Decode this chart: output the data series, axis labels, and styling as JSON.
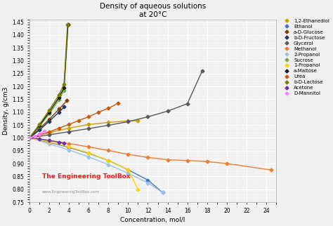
{
  "title_line1": "Density of aqueous solutions",
  "title_line2": "at 20°C",
  "xlabel": "Concentration, mol/l",
  "ylabel": "Density, g/cm3",
  "xlim": [
    0,
    25
  ],
  "ylim": [
    0.75,
    1.46
  ],
  "xticks": [
    0,
    2,
    4,
    6,
    8,
    10,
    12,
    14,
    16,
    18,
    20,
    22,
    24
  ],
  "yticks": [
    0.75,
    0.8,
    0.85,
    0.9,
    0.95,
    1.0,
    1.05,
    1.1,
    1.15,
    1.2,
    1.25,
    1.3,
    1.35,
    1.4,
    1.45
  ],
  "watermark_line1": "The Engineering ToolBox",
  "watermark_line2": "www.EngineeringToolBox.com",
  "bg_color": "#f0f0f0",
  "series": [
    {
      "label": "1,2-Ethanediol",
      "color": "#c8a000",
      "x": [
        0,
        2,
        4,
        6,
        8,
        10,
        11
      ],
      "y": [
        1.0,
        1.02,
        1.038,
        1.052,
        1.06,
        1.066,
        1.067
      ]
    },
    {
      "label": "Ethanol",
      "color": "#4472c4",
      "x": [
        0,
        2,
        4,
        6,
        8,
        10,
        12,
        13.5
      ],
      "y": [
        1.0,
        0.983,
        0.963,
        0.94,
        0.912,
        0.876,
        0.836,
        0.787
      ]
    },
    {
      "label": "a-D-Glucose",
      "color": "#7b3f00",
      "x": [
        0,
        1,
        2,
        3,
        3.8
      ],
      "y": [
        1.0,
        1.035,
        1.072,
        1.112,
        1.145
      ]
    },
    {
      "label": "b-D-Fructose",
      "color": "#1f3864",
      "x": [
        0,
        1,
        2,
        3,
        3.5
      ],
      "y": [
        1.0,
        1.03,
        1.065,
        1.1,
        1.12
      ]
    },
    {
      "label": "Glycerol",
      "color": "#595959",
      "x": [
        0,
        2,
        4,
        6,
        8,
        10,
        12,
        14,
        16,
        17.5
      ],
      "y": [
        1.0,
        1.012,
        1.024,
        1.036,
        1.049,
        1.063,
        1.082,
        1.104,
        1.133,
        1.26
      ]
    },
    {
      "label": "Methanol",
      "color": "#ed7d31",
      "x": [
        0,
        2,
        4,
        6,
        8,
        10,
        12,
        14,
        16,
        18,
        20,
        24.5
      ],
      "y": [
        1.0,
        0.99,
        0.978,
        0.965,
        0.951,
        0.936,
        0.924,
        0.915,
        0.912,
        0.908,
        0.9,
        0.875
      ]
    },
    {
      "label": "2-Propanol",
      "color": "#9dc3e6",
      "x": [
        0,
        2,
        4,
        6,
        8,
        10,
        12,
        13.5
      ],
      "y": [
        1.0,
        0.977,
        0.953,
        0.926,
        0.896,
        0.862,
        0.825,
        0.787
      ]
    },
    {
      "label": "Sucrose",
      "color": "#70ad47",
      "x": [
        0,
        1,
        2,
        3,
        3.5,
        3.9
      ],
      "y": [
        1.0,
        1.045,
        1.093,
        1.148,
        1.185,
        1.44
      ]
    },
    {
      "label": "1-Propanol",
      "color": "#ffd700",
      "x": [
        0,
        2,
        4,
        6,
        8,
        10,
        11
      ],
      "y": [
        1.0,
        0.985,
        0.965,
        0.942,
        0.912,
        0.876,
        0.8
      ]
    },
    {
      "label": "a-Maltose",
      "color": "#1a1a1a",
      "x": [
        0,
        1,
        2,
        3,
        3.5,
        3.9
      ],
      "y": [
        1.0,
        1.048,
        1.1,
        1.158,
        1.195,
        1.44
      ]
    },
    {
      "label": "Urea",
      "color": "#c55a11",
      "x": [
        0,
        1,
        2,
        3,
        4,
        5,
        6,
        7,
        8,
        9
      ],
      "y": [
        1.0,
        1.012,
        1.023,
        1.038,
        1.052,
        1.068,
        1.082,
        1.1,
        1.115,
        1.135
      ]
    },
    {
      "label": "b-D-Lactose",
      "color": "#7f7f00",
      "x": [
        0,
        1,
        2,
        3,
        3.5,
        3.85
      ],
      "y": [
        1.0,
        1.052,
        1.108,
        1.168,
        1.21,
        1.44
      ]
    },
    {
      "label": "Acetone",
      "color": "#7030a0",
      "x": [
        0,
        1,
        2,
        3,
        3.5
      ],
      "y": [
        1.0,
        0.996,
        0.99,
        0.983,
        0.979
      ]
    },
    {
      "label": "D-Mannitol",
      "color": "#ff80ff",
      "x": [
        0,
        0.5,
        1,
        1.5
      ],
      "y": [
        1.0,
        1.006,
        1.015,
        1.025
      ]
    }
  ]
}
